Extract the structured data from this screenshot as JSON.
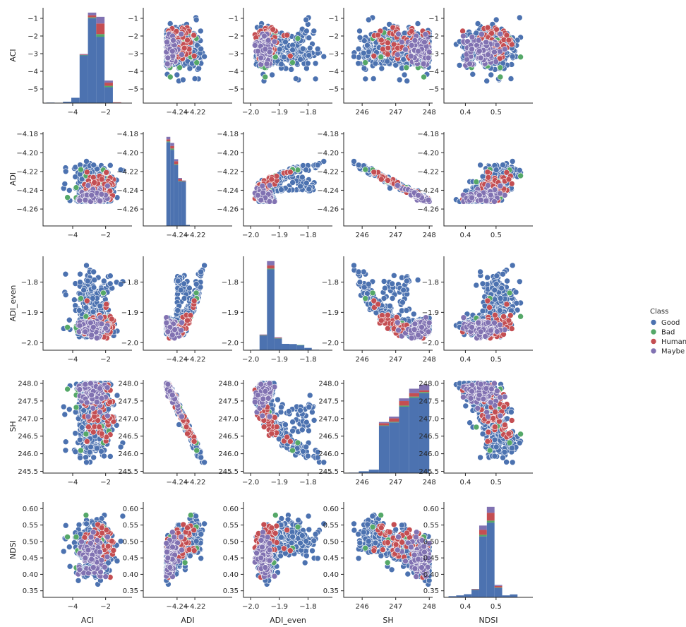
{
  "chart_data": {
    "type": "scatter",
    "kind": "pairplot",
    "variables": [
      "ACI",
      "ADI",
      "ADI_even",
      "SH",
      "NDSI"
    ],
    "hue": "Class",
    "legend": {
      "title": "Class",
      "placement": "right",
      "entries": [
        "Good",
        "Bad",
        "Human",
        "Maybe"
      ]
    },
    "colors": {
      "Good": "#4c72b0",
      "Bad": "#55a868",
      "Human": "#c44e52",
      "Maybe": "#8172b2",
      "axis": "#262626",
      "background": "#ffffff"
    },
    "ranges": {
      "ACI": [
        -5.6,
        -0.6
      ],
      "ADI": [
        -4.252,
        -4.208
      ],
      "ADI_even": [
        -1.995,
        -1.735
      ],
      "SH": [
        245.5,
        248.1
      ],
      "NDSI": [
        0.365,
        0.585
      ]
    },
    "diag_ranges": {
      "ACI": [
        -5.6,
        -0.55
      ],
      "ADI": [
        -4.252,
        -4.208
      ],
      "ADI_even": [
        -1.995,
        -1.735
      ],
      "SH": [
        245.3,
        248.3
      ],
      "NDSI": [
        0.345,
        0.595
      ]
    },
    "axis_limits": {
      "ACI": [
        -5.8,
        -0.4
      ],
      "ADI": [
        -4.278,
        -4.178
      ],
      "ADI_even": [
        -2.025,
        -1.715
      ],
      "SH": [
        245.45,
        248.1
      ],
      "NDSI": [
        0.33,
        0.62
      ]
    },
    "ticks": {
      "ACI": {
        "values": [
          -5,
          -4,
          -3,
          -2,
          -1
        ],
        "labels": [
          "−5",
          "−4",
          "−3",
          "−2",
          "−1"
        ]
      },
      "ACI_x": {
        "values": [
          -4,
          -2
        ],
        "labels": [
          "−4",
          "−2"
        ]
      },
      "ADI": {
        "values": [
          -4.26,
          -4.24,
          -4.22,
          -4.2,
          -4.18
        ],
        "labels": [
          "−4.26",
          "−4.24",
          "−4.22",
          "−4.20",
          "−4.18"
        ]
      },
      "ADI_x": {
        "values": [
          -4.24,
          -4.22
        ],
        "labels": [
          "−4.24",
          "−4.22"
        ]
      },
      "ADI_even": {
        "values": [
          -2.0,
          -1.9,
          -1.8
        ],
        "labels": [
          "−2.0",
          "−1.9",
          "−1.8"
        ]
      },
      "SH": {
        "values": [
          245.5,
          246.0,
          246.5,
          247.0,
          247.5,
          248.0
        ],
        "labels": [
          "245.5",
          "246.0",
          "246.5",
          "247.0",
          "247.5",
          "248.0"
        ]
      },
      "SH_x": {
        "values": [
          246,
          247,
          248
        ],
        "labels": [
          "246",
          "247",
          "248"
        ]
      },
      "NDSI": {
        "values": [
          0.35,
          0.4,
          0.45,
          0.5,
          0.55,
          0.6
        ],
        "labels": [
          "0.35",
          "0.40",
          "0.45",
          "0.50",
          "0.55",
          "0.60"
        ]
      },
      "NDSI_x": {
        "values": [
          0.4,
          0.5
        ],
        "labels": [
          "0.4",
          "0.5"
        ]
      }
    },
    "histograms": {
      "ACI": {
        "edges": [
          -5.6,
          -5.095,
          -4.59,
          -4.085,
          -3.58,
          -3.075,
          -2.57,
          -2.065,
          -1.56,
          -1.055,
          -0.55
        ],
        "counts": {
          "Good": [
            2,
            1,
            5,
            20,
            180,
            320,
            250,
            60,
            2,
            1
          ],
          "Bad": [
            0,
            0,
            0,
            0,
            1,
            3,
            10,
            5,
            0,
            0
          ],
          "Human": [
            0,
            0,
            0,
            0,
            2,
            8,
            40,
            12,
            1,
            0
          ],
          "Maybe": [
            0,
            0,
            0,
            0,
            2,
            10,
            25,
            8,
            0,
            0
          ]
        }
      },
      "ADI": {
        "edges": [
          -4.252,
          -4.2476,
          -4.2432,
          -4.2388,
          -4.2344,
          -4.23,
          -4.2256,
          -4.2212,
          -4.2168,
          -4.2124,
          -4.208
        ],
        "counts": {
          "Good": [
            330,
            300,
            240,
            175,
            175,
            4,
            1,
            0,
            0,
            0
          ],
          "Bad": [
            3,
            5,
            3,
            2,
            1,
            0,
            0,
            0,
            0,
            0
          ],
          "Human": [
            8,
            10,
            12,
            8,
            2,
            0,
            0,
            0,
            0,
            0
          ],
          "Maybe": [
            10,
            12,
            8,
            4,
            1,
            0,
            0,
            0,
            0,
            0
          ]
        }
      },
      "ADI_even": {
        "edges": [
          -1.995,
          -1.969,
          -1.943,
          -1.917,
          -1.891,
          -1.865,
          -1.839,
          -1.813,
          -1.787,
          -1.761,
          -1.735
        ],
        "counts": {
          "Good": [
            5,
            140,
            760,
            110,
            60,
            58,
            48,
            22,
            5,
            1
          ],
          "Bad": [
            0,
            1,
            8,
            2,
            0,
            0,
            1,
            0,
            0,
            0
          ],
          "Human": [
            0,
            4,
            30,
            6,
            0,
            0,
            0,
            0,
            0,
            0
          ],
          "Maybe": [
            0,
            3,
            40,
            4,
            0,
            0,
            0,
            0,
            0,
            0
          ]
        }
      },
      "SH": {
        "edges": [
          245.3,
          245.6,
          245.9,
          246.2,
          246.5,
          246.8,
          247.1,
          247.4,
          247.7,
          248.0,
          248.3
        ],
        "counts": {
          "Good": [
            0,
            2,
            8,
            15,
            210,
            225,
            295,
            335,
            355,
            0
          ],
          "Bad": [
            0,
            0,
            0,
            0,
            2,
            3,
            5,
            5,
            5,
            0
          ],
          "Human": [
            0,
            0,
            0,
            0,
            10,
            15,
            20,
            15,
            8,
            0
          ],
          "Maybe": [
            0,
            0,
            0,
            0,
            5,
            8,
            12,
            20,
            25,
            0
          ]
        }
      },
      "NDSI": {
        "edges": [
          0.345,
          0.37,
          0.395,
          0.42,
          0.445,
          0.47,
          0.495,
          0.52,
          0.545,
          0.57,
          0.595
        ],
        "counts": {
          "Good": [
            6,
            10,
            16,
            38,
            310,
            380,
            48,
            10,
            15,
            0
          ],
          "Bad": [
            0,
            0,
            0,
            1,
            8,
            10,
            2,
            0,
            0,
            0
          ],
          "Human": [
            0,
            0,
            0,
            2,
            25,
            40,
            8,
            0,
            0,
            0
          ],
          "Maybe": [
            0,
            0,
            0,
            2,
            22,
            30,
            5,
            0,
            0,
            0
          ]
        }
      }
    }
  }
}
